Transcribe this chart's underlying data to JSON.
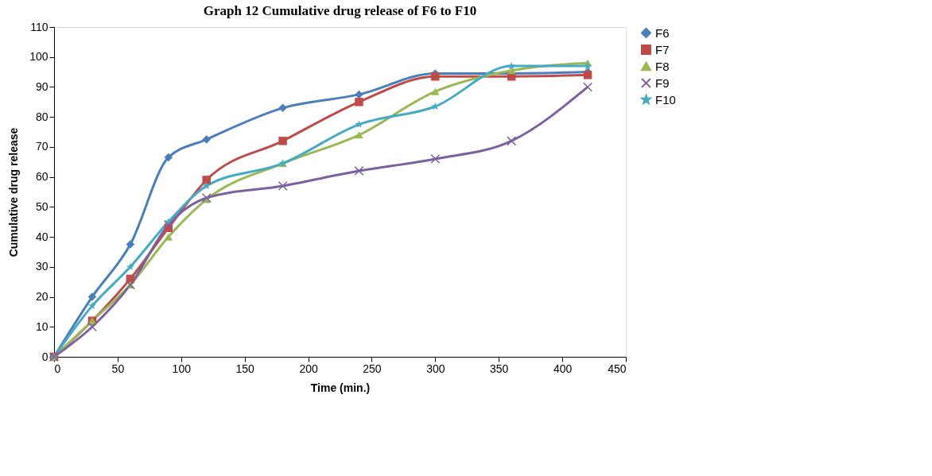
{
  "chart_data": {
    "type": "line",
    "title": "Graph 12 Cumulative drug release of F6 to F10",
    "xlabel": "Time (min.)",
    "ylabel": "Cumulative drug release",
    "x": [
      0,
      30,
      60,
      90,
      120,
      180,
      240,
      300,
      360,
      420
    ],
    "series": [
      {
        "name": "F6",
        "color": "#4a7ebb",
        "marker": "diamond",
        "values": [
          0,
          20,
          37.5,
          66.5,
          72.5,
          83,
          87.5,
          94.5,
          94.5,
          95
        ]
      },
      {
        "name": "F7",
        "color": "#be4b48",
        "marker": "square",
        "values": [
          0,
          12,
          26,
          43,
          59,
          72,
          85,
          93.5,
          93.5,
          94
        ]
      },
      {
        "name": "F8",
        "color": "#98b954",
        "marker": "triangle",
        "values": [
          0,
          12,
          24,
          40,
          52.5,
          64.5,
          74,
          88.5,
          95.5,
          98
        ]
      },
      {
        "name": "F9",
        "color": "#7d60a0",
        "marker": "cross",
        "values": [
          0,
          10,
          24,
          44,
          53,
          57,
          62,
          66,
          72,
          90
        ]
      },
      {
        "name": "F10",
        "color": "#46aac5",
        "marker": "star",
        "values": [
          0,
          17,
          30,
          45,
          57,
          64.5,
          77.5,
          83.5,
          97,
          97
        ]
      }
    ],
    "xlim": [
      0,
      450
    ],
    "xticks": [
      0,
      50,
      100,
      150,
      200,
      250,
      300,
      350,
      400,
      450
    ],
    "ylim": [
      0,
      110
    ],
    "yticks": [
      0,
      10,
      20,
      30,
      40,
      50,
      60,
      70,
      80,
      90,
      100,
      110
    ],
    "grid": false,
    "legend": "right",
    "line_style": "solid"
  }
}
